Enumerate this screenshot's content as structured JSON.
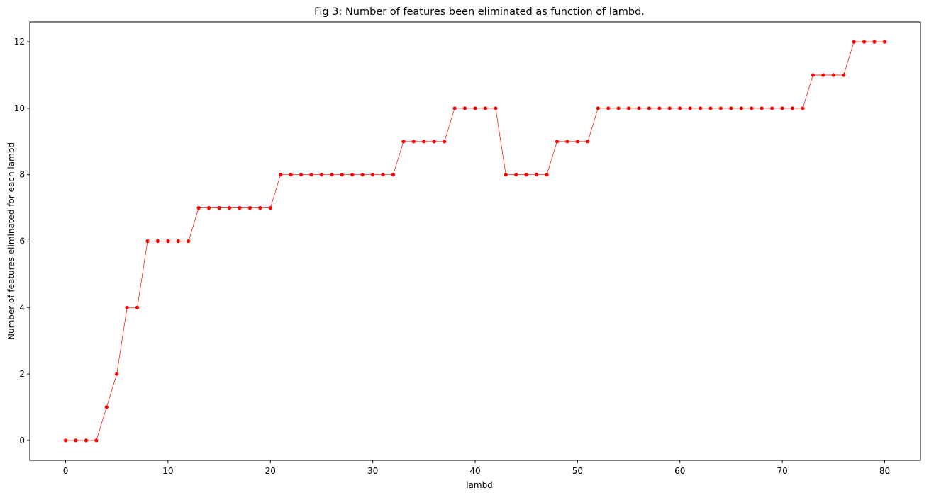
{
  "chart_data": {
    "type": "line",
    "title": "Fig 3: Number of features been eliminated as function of lambd.",
    "xlabel": "lambd",
    "ylabel": "Number of features eliminated for each lambd",
    "xlim": [
      -3.5,
      83.5
    ],
    "ylim": [
      -0.6,
      12.6
    ],
    "xticks": [
      0,
      10,
      20,
      30,
      40,
      50,
      60,
      70,
      80
    ],
    "yticks": [
      0,
      2,
      4,
      6,
      8,
      10,
      12
    ],
    "grid": false,
    "series": [
      {
        "color": "#ff0000",
        "marker": "circle",
        "x": [
          0,
          1,
          2,
          3,
          4,
          5,
          6,
          7,
          8,
          9,
          10,
          11,
          12,
          13,
          14,
          15,
          16,
          17,
          18,
          19,
          20,
          21,
          22,
          23,
          24,
          25,
          26,
          27,
          28,
          29,
          30,
          31,
          32,
          33,
          34,
          35,
          36,
          37,
          38,
          39,
          40,
          41,
          42,
          43,
          44,
          45,
          46,
          47,
          48,
          49,
          50,
          51,
          52,
          53,
          54,
          55,
          56,
          57,
          58,
          59,
          60,
          61,
          62,
          63,
          64,
          65,
          66,
          67,
          68,
          69,
          70,
          71,
          72,
          73,
          74,
          75,
          76,
          77,
          78,
          79,
          80
        ],
        "y": [
          0,
          0,
          0,
          0,
          1,
          2,
          4,
          4,
          6,
          6,
          6,
          6,
          6,
          7,
          7,
          7,
          7,
          7,
          7,
          7,
          7,
          8,
          8,
          8,
          8,
          8,
          8,
          8,
          8,
          8,
          8,
          8,
          8,
          9,
          9,
          9,
          9,
          9,
          10,
          10,
          10,
          10,
          10,
          8,
          8,
          8,
          8,
          8,
          9,
          9,
          9,
          9,
          10,
          10,
          10,
          10,
          10,
          10,
          10,
          10,
          10,
          10,
          10,
          10,
          10,
          10,
          10,
          10,
          10,
          10,
          10,
          10,
          10,
          11,
          11,
          11,
          11,
          12,
          12,
          12,
          12
        ]
      }
    ]
  }
}
